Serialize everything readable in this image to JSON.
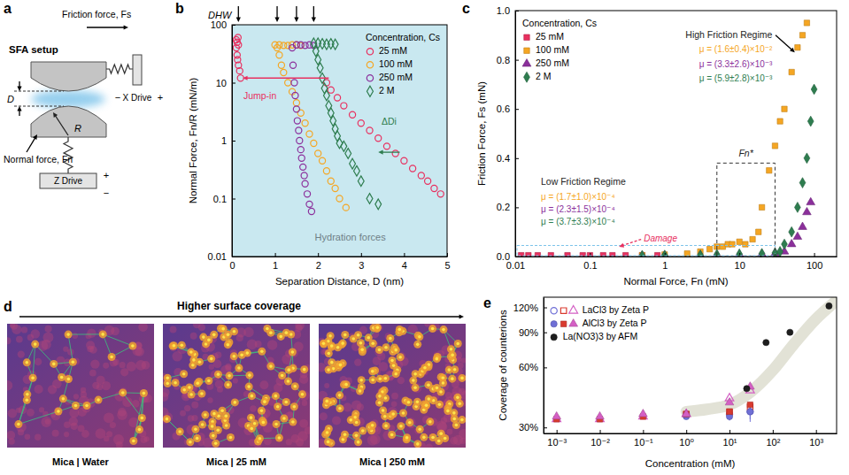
{
  "diagram": {
    "panel_label": "a",
    "title": "SFA setup",
    "friction_force": "Friction force, Fs",
    "normal_force": "Normal force, Fn",
    "separation": "D",
    "radius": "R",
    "x_drive": "X Drive",
    "z_drive": "Z Drive",
    "plus": "+",
    "minus": "−"
  },
  "chart_data": [
    {
      "type": "scatter",
      "panel_label": "b",
      "x_label": "Separation Distance, D (nm)",
      "y_label": "Normal Force, Fn/R (mN/m)",
      "log": "y",
      "xlim": [
        0,
        5
      ],
      "xticks": [
        0,
        1,
        2,
        3,
        4,
        5
      ],
      "ylim": [
        0.01,
        100
      ],
      "yticks": [
        0.01,
        0.1,
        1,
        10,
        100
      ],
      "legend": "top-right",
      "legend_title": "Concentration, Cs",
      "hard_wall_label": "DHW",
      "hard_wall_distances": [
        0.15,
        1.05,
        1.5,
        1.9
      ],
      "annotations": [
        {
          "text": "Jump-in",
          "color": "#e8305f"
        },
        {
          "text": "ΔDi",
          "color": "#2e7d4f"
        },
        {
          "text": "Hydration forces",
          "color": "#6f7f86"
        }
      ],
      "series": [
        {
          "name": "25 mM",
          "color": "#e8305f",
          "marker": "circle-open",
          "x": [
            4.85,
            4.7,
            4.55,
            4.4,
            4.2,
            4.0,
            3.8,
            3.6,
            3.4,
            3.2,
            3.0,
            2.8,
            2.6,
            2.45,
            2.3,
            2.2,
            0.2,
            0.18,
            0.15,
            0.13,
            0.12,
            0.1,
            0.12,
            0.14,
            0.1,
            0.15
          ],
          "values": [
            0.12,
            0.15,
            0.2,
            0.25,
            0.33,
            0.45,
            0.6,
            0.8,
            1.1,
            1.5,
            2.0,
            2.8,
            4.0,
            5.5,
            7.5,
            10,
            12,
            16,
            20,
            25,
            30,
            40,
            50,
            60,
            55,
            45
          ]
        },
        {
          "name": "100 mM",
          "color": "#f5a623",
          "marker": "circle-open",
          "x": [
            2.65,
            2.5,
            2.4,
            2.3,
            2.2,
            2.1,
            2.0,
            1.9,
            1.8,
            1.7,
            1.6,
            1.5,
            1.4,
            1.3,
            1.2,
            1.15,
            1.1,
            1.05,
            1.0,
            1.1,
            1.2,
            1.3,
            1.4,
            1.5,
            1.6
          ],
          "values": [
            0.07,
            0.1,
            0.15,
            0.2,
            0.3,
            0.45,
            0.6,
            0.9,
            1.3,
            2.0,
            3.0,
            4.5,
            7,
            10,
            15,
            20,
            30,
            40,
            45,
            45,
            44,
            44,
            45,
            45,
            44
          ]
        },
        {
          "name": "250 mM",
          "color": "#8b2f9b",
          "marker": "circle-open",
          "x": [
            1.85,
            1.8,
            1.75,
            1.7,
            1.68,
            1.65,
            1.62,
            1.6,
            1.57,
            1.55,
            1.52,
            1.5,
            1.47,
            1.45,
            1.42,
            1.4,
            1.5,
            1.6,
            1.7,
            1.8,
            1.9
          ],
          "values": [
            0.06,
            0.08,
            0.12,
            0.18,
            0.25,
            0.35,
            0.5,
            0.7,
            1.0,
            1.5,
            2.2,
            3.5,
            6,
            10,
            20,
            40,
            45,
            45,
            44,
            45,
            44
          ]
        },
        {
          "name": "2 M",
          "color": "#2e7d4f",
          "marker": "diamond-open",
          "x": [
            3.4,
            3.2,
            3.0,
            2.9,
            2.8,
            2.7,
            2.6,
            2.5,
            2.45,
            2.4,
            2.35,
            2.3,
            2.25,
            2.2,
            2.15,
            2.1,
            2.05,
            2.0,
            1.95,
            1.9,
            2.0,
            2.1,
            2.2,
            2.3,
            2.4
          ],
          "values": [
            0.08,
            0.1,
            0.2,
            0.3,
            0.4,
            0.6,
            0.8,
            0.9,
            1.2,
            1.6,
            2.2,
            3,
            4,
            6,
            8,
            12,
            18,
            25,
            35,
            48,
            48,
            47,
            46,
            47,
            46
          ]
        }
      ]
    },
    {
      "type": "scatter",
      "panel_label": "c",
      "x_label": "Normal Force, Fn (mN)",
      "y_label": "Friction Force, Fs (mN)",
      "log": "x",
      "xlim": [
        0.01,
        200
      ],
      "xticks": [
        0.01,
        0.1,
        1,
        10,
        100
      ],
      "ylim": [
        0,
        1
      ],
      "yticks": [
        {
          "value": 0,
          "label": "0.0"
        },
        0.2,
        0.4,
        0.6,
        0.8,
        {
          "value": 1,
          "label": "1.0"
        }
      ],
      "legend": "top-left",
      "legend_title": "Concentration, Cs",
      "annotations": [
        {
          "text": "Low Friction Regime",
          "color": "#222222"
        },
        {
          "text": "μ = (1.7±1.0)×10⁻⁴",
          "color": "#f5a623"
        },
        {
          "text": "μ = (2.3±1.5)×10⁻⁴",
          "color": "#8b2f9b"
        },
        {
          "text": "μ = (3.7±3.3)×10⁻⁴",
          "color": "#2e7d4f"
        },
        {
          "text": "High Friction Regime",
          "color": "#222222"
        },
        {
          "text": "μ = (1.6±0.4)×10⁻²",
          "color": "#f5a623"
        },
        {
          "text": "μ = (3.3±2.6)×10⁻³",
          "color": "#8b2f9b"
        },
        {
          "text": "μ = (5.9±2.8)×10⁻³",
          "color": "#2e7d4f"
        },
        {
          "text": "Damage",
          "color": "#e8305f"
        },
        {
          "text": "Fn*",
          "color": "#222222",
          "range": [
            5,
            30
          ]
        }
      ],
      "series": [
        {
          "name": "25 mM",
          "color": "#e8305f",
          "marker": "square",
          "x": [
            0.012,
            0.015,
            0.02,
            0.03,
            0.05,
            0.08,
            0.1,
            0.15,
            0.2,
            0.3,
            0.5,
            0.8
          ],
          "values": [
            0.005,
            0.005,
            0.005,
            0.005,
            0.005,
            0.005,
            0.005,
            0.005,
            0.005,
            0.005,
            0.005,
            0.005
          ]
        },
        {
          "name": "100 mM",
          "color": "#f5a623",
          "marker": "square",
          "x": [
            0.5,
            1,
            2,
            3,
            4,
            5,
            6,
            7,
            8,
            10,
            12,
            15,
            18,
            20,
            25,
            30,
            35,
            40,
            50,
            60,
            70,
            80
          ],
          "values": [
            0.005,
            0.008,
            0.012,
            0.02,
            0.03,
            0.04,
            0.04,
            0.05,
            0.05,
            0.06,
            0.05,
            0.07,
            0.1,
            0.2,
            0.35,
            0.45,
            0.55,
            0.6,
            0.75,
            0.85,
            0.9,
            0.95
          ]
        },
        {
          "name": "250 mM",
          "color": "#8b2f9b",
          "marker": "triangle",
          "x": [
            0.5,
            1,
            3,
            5,
            10,
            20,
            30,
            40,
            50,
            60,
            70,
            80,
            90
          ],
          "values": [
            0.003,
            0.004,
            0.005,
            0.006,
            0.008,
            0.01,
            0.012,
            0.02,
            0.05,
            0.08,
            0.12,
            0.18,
            0.22
          ]
        },
        {
          "name": "2 M",
          "color": "#2e7d4f",
          "marker": "diamond",
          "x": [
            0.5,
            1,
            3,
            5,
            10,
            20,
            30,
            35,
            40,
            50,
            60,
            70,
            80,
            90,
            100
          ],
          "values": [
            0.004,
            0.005,
            0.006,
            0.008,
            0.01,
            0.012,
            0.015,
            0.02,
            0.05,
            0.1,
            0.2,
            0.3,
            0.4,
            0.55,
            0.68
          ]
        }
      ]
    },
    {
      "type": "scatter",
      "panel_label": "e",
      "x_label": "Concentration (mM)",
      "y_label": "Coverage of counterions",
      "log": true,
      "xlim": [
        0.0005,
        3000
      ],
      "xticks": [
        {
          "value": 0.001,
          "label": "10⁻³"
        },
        {
          "value": 0.01,
          "label": "10⁻²"
        },
        {
          "value": 0.1,
          "label": "10⁻¹"
        },
        {
          "value": 1,
          "label": "10⁰"
        },
        {
          "value": 10,
          "label": "10¹"
        },
        {
          "value": 100,
          "label": "10²"
        },
        {
          "value": 1000,
          "label": "10³"
        }
      ],
      "ylim": [
        28,
        135
      ],
      "yticks": [
        {
          "value": 30,
          "label": "30%"
        },
        {
          "value": 60,
          "label": "60%"
        },
        {
          "value": 90,
          "label": "90%"
        },
        {
          "value": 120,
          "label": "120%"
        }
      ],
      "legend": "top-left",
      "series": [
        {
          "type": "line",
          "color": "#e2e2d6",
          "x": [
            1,
            3,
            10,
            30,
            100,
            300,
            1000,
            3000
          ],
          "values": [
            36,
            37,
            39,
            45,
            58,
            78,
            105,
            130
          ]
        },
        {
          "name": "LaCl3 by Zeta P",
          "color": "#6f6fd6",
          "marker": "circle-open",
          "x": [
            1,
            10,
            30
          ],
          "values": [
            35,
            35,
            36
          ],
          "errors": [
            1.5,
            2,
            3
          ]
        },
        {
          "name": "LaCl3 by Zeta P",
          "color": "#d93a2f",
          "marker": "square-open",
          "x": [
            1,
            10,
            30
          ],
          "values": [
            35,
            36,
            38
          ]
        },
        {
          "name": "LaCl3 by Zeta P",
          "color": "#d45fc4",
          "marker": "triangle-open",
          "x": [
            0.001,
            0.01,
            0.1,
            1,
            10,
            30
          ],
          "values": [
            33,
            33,
            34,
            35,
            42,
            46
          ]
        },
        {
          "name": "AlCl3 by Zeta P",
          "color": "#6f6fd6",
          "marker": "circle",
          "x": [
            1,
            10,
            30
          ],
          "values": [
            34,
            34,
            36
          ],
          "errors": [
            1,
            1.5,
            4
          ]
        },
        {
          "name": "AlCl3 by Zeta P",
          "color": "#d93a2f",
          "marker": "square",
          "x": [
            0.001,
            0.01,
            0.1,
            1,
            10,
            30
          ],
          "values": [
            33,
            33,
            34,
            35,
            36,
            39
          ]
        },
        {
          "name": "AlCl3 by Zeta P",
          "color": "#d45fc4",
          "marker": "triangle",
          "x": [
            0.001,
            0.01,
            0.1,
            1,
            10,
            30
          ],
          "values": [
            34,
            34,
            35,
            35,
            40,
            48
          ]
        },
        {
          "name": "La(NO3)3 by AFM",
          "color": "#1e1e1e",
          "marker": "circle",
          "x": [
            25,
            70,
            250,
            2000
          ],
          "values": [
            47,
            80,
            90,
            122
          ]
        }
      ]
    }
  ],
  "images": {
    "panel_label": "d",
    "heading": "Higher surface coverage",
    "captions": [
      "Mica | Water",
      "Mica | 25 mM",
      "Mica | 250 mM"
    ]
  }
}
